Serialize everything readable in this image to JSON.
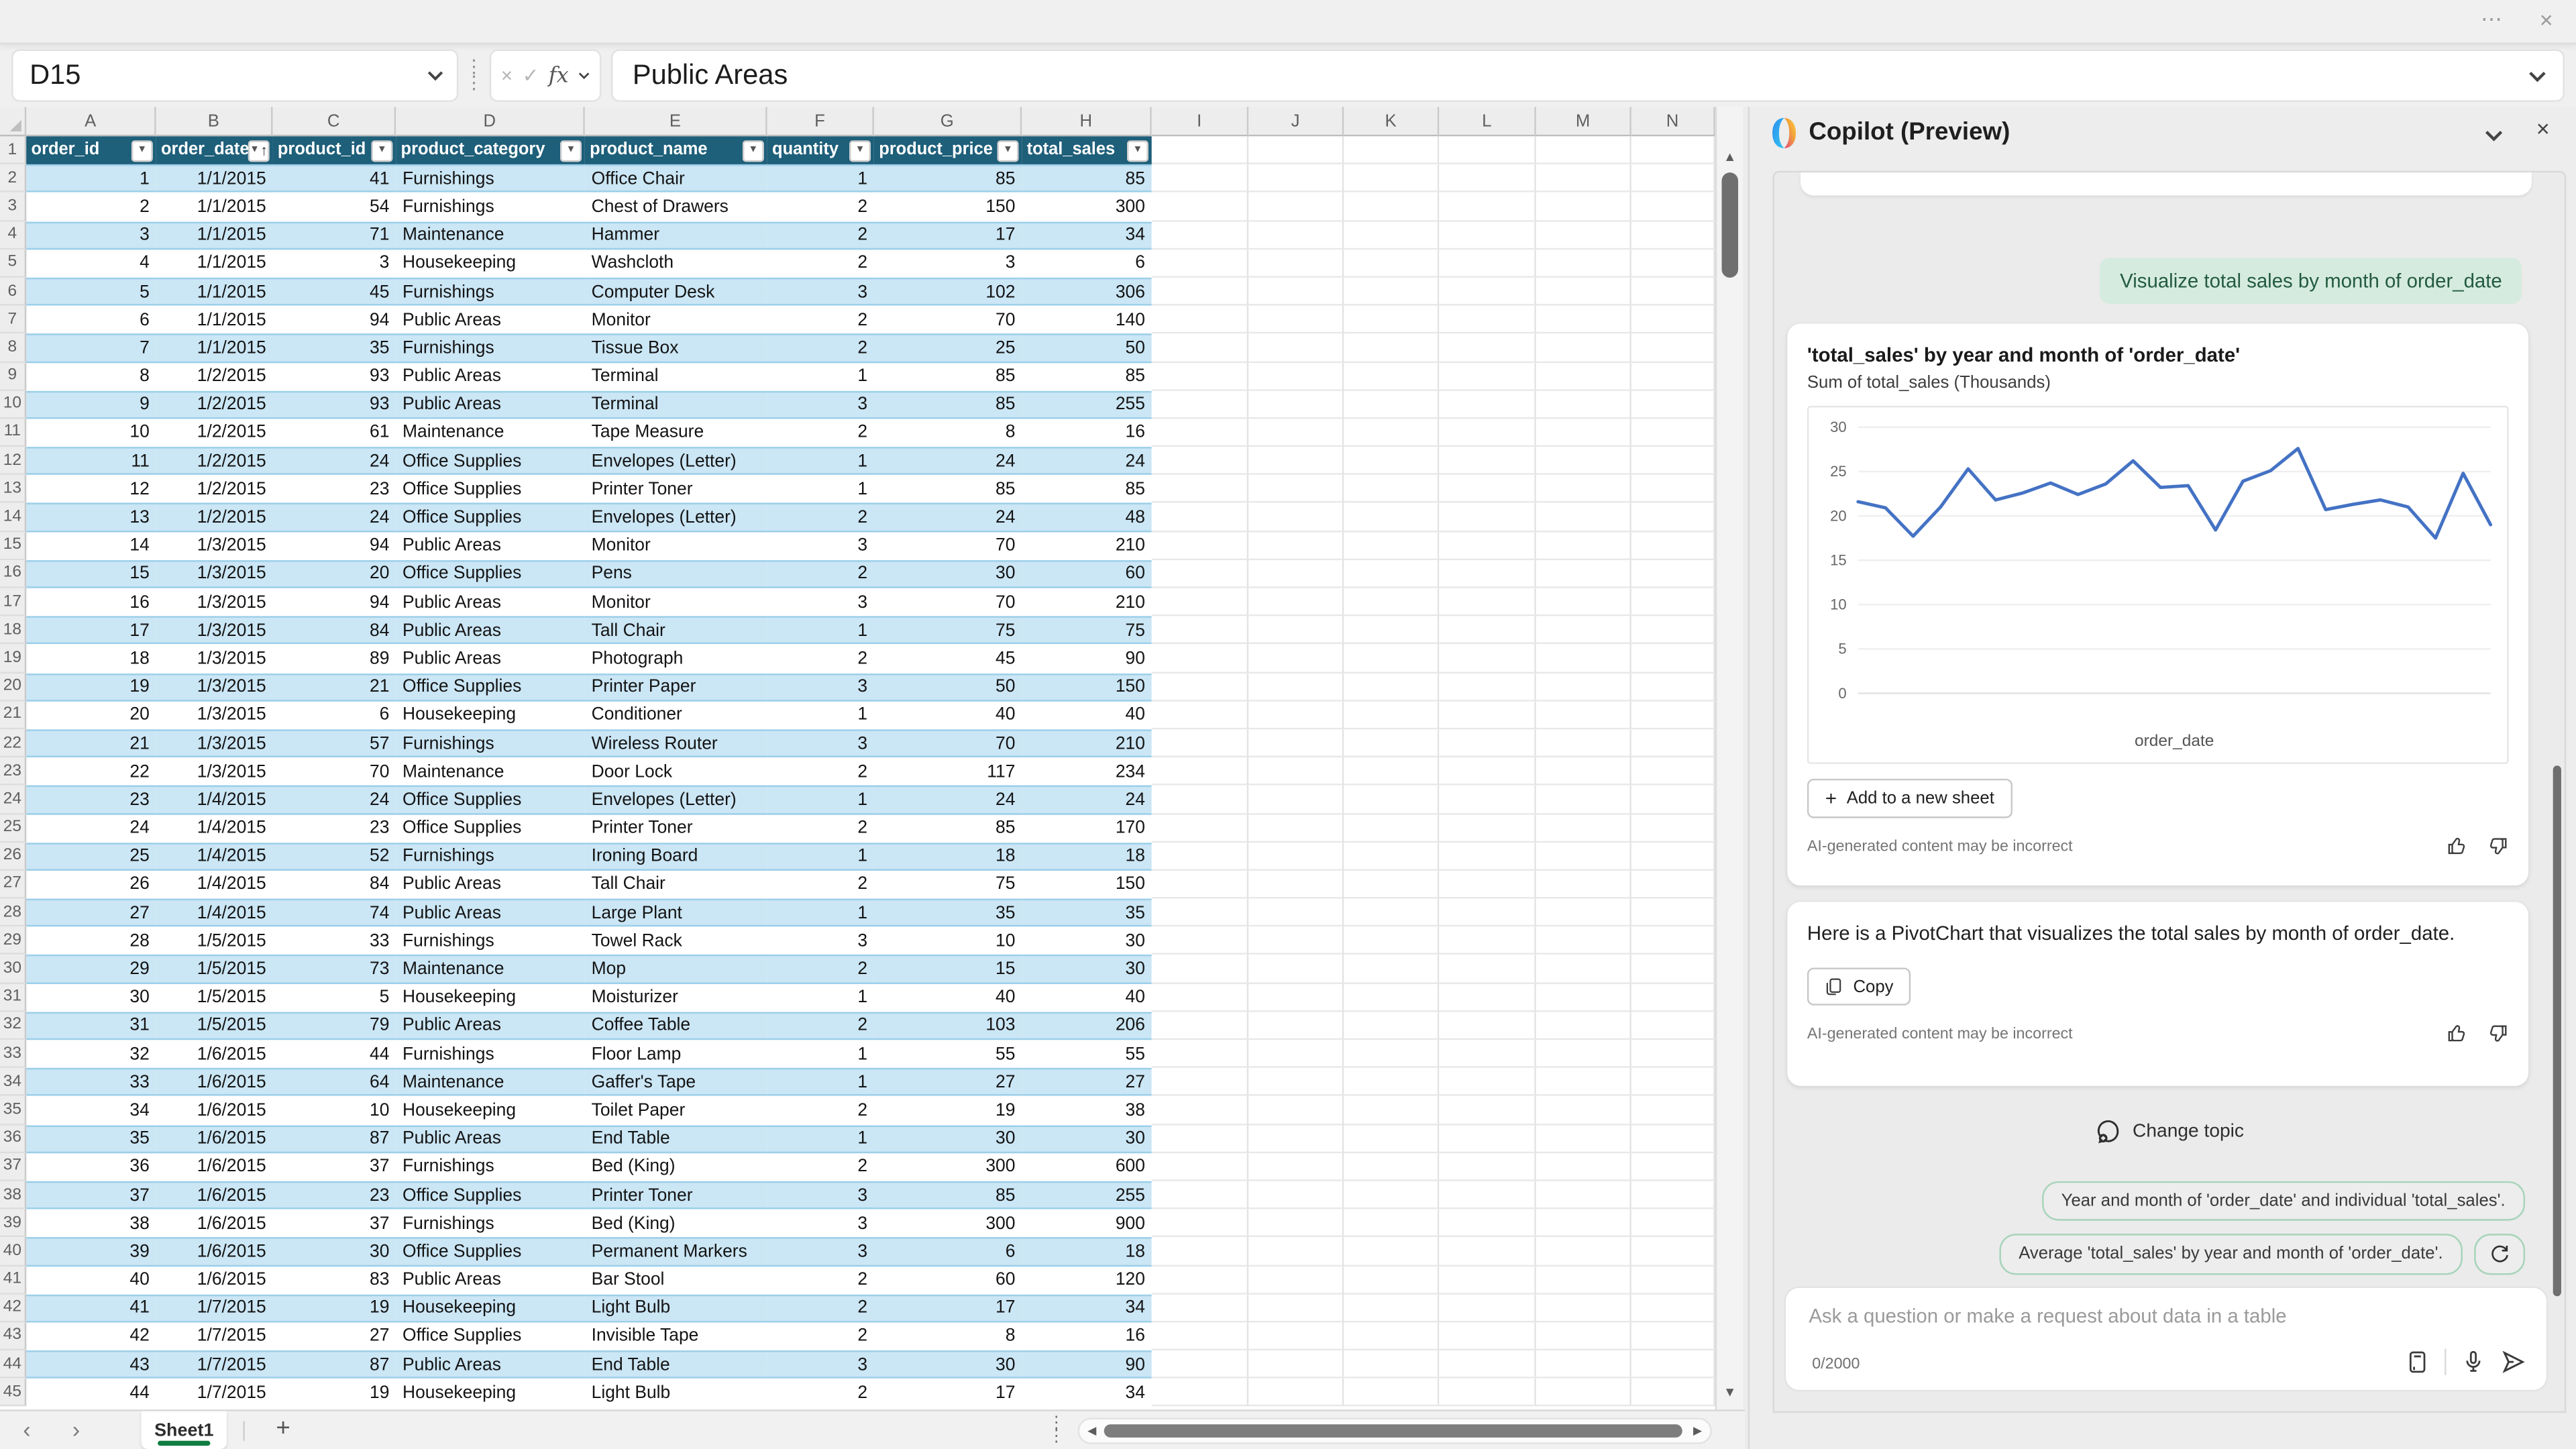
{
  "titlebar": {
    "ellipsis_icon": "⋯",
    "close_icon": "×"
  },
  "formula_bar": {
    "cell_reference": "D15",
    "cancel_icon": "×",
    "confirm_icon": "✓",
    "fx_label": "fx",
    "value": "Public Areas"
  },
  "icons": {
    "up_arrow": "▲",
    "down_arrow": "▼",
    "left_arrow": "◀",
    "right_arrow": "▶",
    "nav_left": "‹",
    "nav_right": "›",
    "plus": "+",
    "dots_v": "⋮",
    "dots_h": "⋮",
    "filter": "▼",
    "sort_asc": "↑"
  },
  "sheet": {
    "column_letters": [
      "A",
      "B",
      "C",
      "D",
      "E",
      "F",
      "G",
      "H",
      "I",
      "J",
      "K",
      "L",
      "M",
      "N"
    ],
    "header_row_number": "1",
    "headers": [
      {
        "label": "order_id",
        "sorted": false
      },
      {
        "label": "order_date",
        "sorted": true
      },
      {
        "label": "product_id",
        "sorted": false
      },
      {
        "label": "product_category",
        "sorted": false
      },
      {
        "label": "product_name",
        "sorted": false
      },
      {
        "label": "quantity",
        "sorted": false
      },
      {
        "label": "product_price",
        "sorted": false
      },
      {
        "label": "total_sales",
        "sorted": false
      }
    ],
    "rows": [
      [
        1,
        "1/1/2015",
        41,
        "Furnishings",
        "Office Chair",
        1,
        85,
        85
      ],
      [
        2,
        "1/1/2015",
        54,
        "Furnishings",
        "Chest of Drawers",
        2,
        150,
        300
      ],
      [
        3,
        "1/1/2015",
        71,
        "Maintenance",
        "Hammer",
        2,
        17,
        34
      ],
      [
        4,
        "1/1/2015",
        3,
        "Housekeeping",
        "Washcloth",
        2,
        3,
        6
      ],
      [
        5,
        "1/1/2015",
        45,
        "Furnishings",
        "Computer Desk",
        3,
        102,
        306
      ],
      [
        6,
        "1/1/2015",
        94,
        "Public Areas",
        "Monitor",
        2,
        70,
        140
      ],
      [
        7,
        "1/1/2015",
        35,
        "Furnishings",
        "Tissue Box",
        2,
        25,
        50
      ],
      [
        8,
        "1/2/2015",
        93,
        "Public Areas",
        "Terminal",
        1,
        85,
        85
      ],
      [
        9,
        "1/2/2015",
        93,
        "Public Areas",
        "Terminal",
        3,
        85,
        255
      ],
      [
        10,
        "1/2/2015",
        61,
        "Maintenance",
        "Tape Measure",
        2,
        8,
        16
      ],
      [
        11,
        "1/2/2015",
        24,
        "Office Supplies",
        "Envelopes (Letter)",
        1,
        24,
        24
      ],
      [
        12,
        "1/2/2015",
        23,
        "Office Supplies",
        "Printer Toner",
        1,
        85,
        85
      ],
      [
        13,
        "1/2/2015",
        24,
        "Office Supplies",
        "Envelopes (Letter)",
        2,
        24,
        48
      ],
      [
        14,
        "1/3/2015",
        94,
        "Public Areas",
        "Monitor",
        3,
        70,
        210
      ],
      [
        15,
        "1/3/2015",
        20,
        "Office Supplies",
        "Pens",
        2,
        30,
        60
      ],
      [
        16,
        "1/3/2015",
        94,
        "Public Areas",
        "Monitor",
        3,
        70,
        210
      ],
      [
        17,
        "1/3/2015",
        84,
        "Public Areas",
        "Tall Chair",
        1,
        75,
        75
      ],
      [
        18,
        "1/3/2015",
        89,
        "Public Areas",
        "Photograph",
        2,
        45,
        90
      ],
      [
        19,
        "1/3/2015",
        21,
        "Office Supplies",
        "Printer Paper",
        3,
        50,
        150
      ],
      [
        20,
        "1/3/2015",
        6,
        "Housekeeping",
        "Conditioner",
        1,
        40,
        40
      ],
      [
        21,
        "1/3/2015",
        57,
        "Furnishings",
        "Wireless Router",
        3,
        70,
        210
      ],
      [
        22,
        "1/3/2015",
        70,
        "Maintenance",
        "Door Lock",
        2,
        117,
        234
      ],
      [
        23,
        "1/4/2015",
        24,
        "Office Supplies",
        "Envelopes (Letter)",
        1,
        24,
        24
      ],
      [
        24,
        "1/4/2015",
        23,
        "Office Supplies",
        "Printer Toner",
        2,
        85,
        170
      ],
      [
        25,
        "1/4/2015",
        52,
        "Furnishings",
        "Ironing Board",
        1,
        18,
        18
      ],
      [
        26,
        "1/4/2015",
        84,
        "Public Areas",
        "Tall Chair",
        2,
        75,
        150
      ],
      [
        27,
        "1/4/2015",
        74,
        "Public Areas",
        "Large Plant",
        1,
        35,
        35
      ],
      [
        28,
        "1/5/2015",
        33,
        "Furnishings",
        "Towel Rack",
        3,
        10,
        30
      ],
      [
        29,
        "1/5/2015",
        73,
        "Maintenance",
        "Mop",
        2,
        15,
        30
      ],
      [
        30,
        "1/5/2015",
        5,
        "Housekeeping",
        "Moisturizer",
        1,
        40,
        40
      ],
      [
        31,
        "1/5/2015",
        79,
        "Public Areas",
        "Coffee Table",
        2,
        103,
        206
      ],
      [
        32,
        "1/6/2015",
        44,
        "Furnishings",
        "Floor Lamp",
        1,
        55,
        55
      ],
      [
        33,
        "1/6/2015",
        64,
        "Maintenance",
        "Gaffer's Tape",
        1,
        27,
        27
      ],
      [
        34,
        "1/6/2015",
        10,
        "Housekeeping",
        "Toilet Paper",
        2,
        19,
        38
      ],
      [
        35,
        "1/6/2015",
        87,
        "Public Areas",
        "End Table",
        1,
        30,
        30
      ],
      [
        36,
        "1/6/2015",
        37,
        "Furnishings",
        "Bed (King)",
        2,
        300,
        600
      ],
      [
        37,
        "1/6/2015",
        23,
        "Office Supplies",
        "Printer Toner",
        3,
        85,
        255
      ],
      [
        38,
        "1/6/2015",
        37,
        "Furnishings",
        "Bed (King)",
        3,
        300,
        900
      ],
      [
        39,
        "1/6/2015",
        30,
        "Office Supplies",
        "Permanent Markers",
        3,
        6,
        18
      ],
      [
        40,
        "1/6/2015",
        83,
        "Public Areas",
        "Bar Stool",
        2,
        60,
        120
      ],
      [
        41,
        "1/7/2015",
        19,
        "Housekeeping",
        "Light Bulb",
        2,
        17,
        34
      ],
      [
        42,
        "1/7/2015",
        27,
        "Office Supplies",
        "Invisible Tape",
        2,
        8,
        16
      ],
      [
        43,
        "1/7/2015",
        87,
        "Public Areas",
        "End Table",
        3,
        30,
        90
      ],
      [
        44,
        "1/7/2015",
        19,
        "Housekeeping",
        "Light Bulb",
        2,
        17,
        34
      ]
    ],
    "active_tab": "Sheet1"
  },
  "copilot": {
    "title": "Copilot (Preview)",
    "user_message": "Visualize total sales by month of order_date",
    "chart_card": {
      "add_button": "Add to a new sheet",
      "disclaimer": "AI-generated content may be incorrect"
    },
    "response_card": {
      "text": "Here is a PivotChart that visualizes the total sales by month of order_date.",
      "copy_button": "Copy",
      "disclaimer": "AI-generated content may be incorrect"
    },
    "change_topic": "Change topic",
    "suggestions": [
      "Year and month of 'order_date' and individual 'total_sales'.",
      "Average 'total_sales' by year and month of 'order_date'."
    ],
    "input": {
      "placeholder": "Ask a question or make a request about data in a table",
      "counter": "0/2000"
    }
  },
  "chart_data": {
    "type": "line",
    "title": "'total_sales' by year and month of 'order_date'",
    "subtitle": "Sum of total_sales (Thousands)",
    "xlabel": "order_date",
    "ylabel": "Sum of total_sales (Thousands)",
    "ylim": [
      0,
      30
    ],
    "yticks": [
      0,
      5,
      10,
      15,
      20,
      25,
      30
    ],
    "grid": true,
    "legend": false,
    "x_description": "24 consecutive monthly points of order_date (x tick labels not shown)",
    "series": [
      {
        "name": "Sum of total_sales",
        "values": [
          21.6,
          20.9,
          17.7,
          21.0,
          25.3,
          21.8,
          22.6,
          23.7,
          22.4,
          23.6,
          26.2,
          23.2,
          23.4,
          18.4,
          23.9,
          25.1,
          27.6,
          20.7,
          21.3,
          21.8,
          21.0,
          17.5,
          24.8,
          19.0
        ]
      }
    ],
    "line_color": "#4472C4"
  },
  "colors": {
    "table_header_bg": "#1E5F7A",
    "band_fill": "#CBE6F5",
    "band_border": "#9CCFE9",
    "accent_green": "#107C41",
    "bubble_bg": "#D6EBDF",
    "chip_border": "#A7D4BA",
    "chart_line": "#4472C4"
  }
}
